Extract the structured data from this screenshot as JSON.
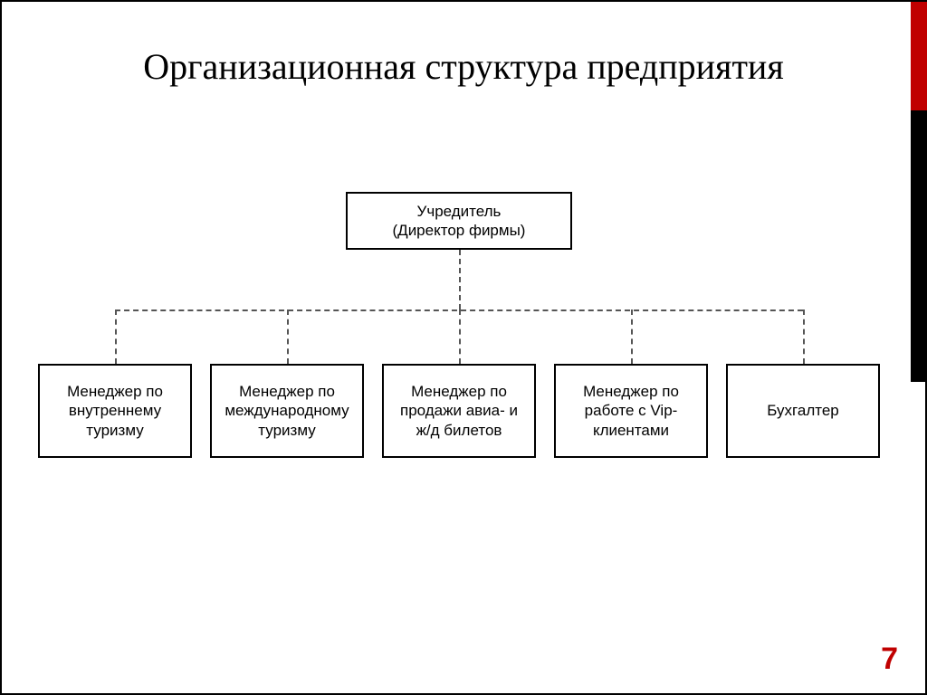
{
  "slide": {
    "title": "Организационная структура предприятия",
    "page_number": "7",
    "accent_color": "#c00000",
    "border_color": "#000000",
    "background_color": "#ffffff"
  },
  "org_chart": {
    "type": "tree",
    "root": {
      "label": "Учредитель\n(Директор фирмы)"
    },
    "children": [
      {
        "label": "Менеджер по внутреннему туризму"
      },
      {
        "label": "Менеджер по международному туризму"
      },
      {
        "label": "Менеджер по продажи авиа- и ж/д билетов"
      },
      {
        "label": "Менеджер по работе с Vip-клиентами"
      },
      {
        "label": "Бухгалтер"
      }
    ],
    "node_border_color": "#000000",
    "node_background": "#ffffff",
    "connector_color": "#555555",
    "connector_style": "dashed",
    "node_fontsize": 17,
    "title_fontsize": 40,
    "font_family_title": "Georgia, Times New Roman, serif",
    "font_family_nodes": "Arial, sans-serif"
  }
}
